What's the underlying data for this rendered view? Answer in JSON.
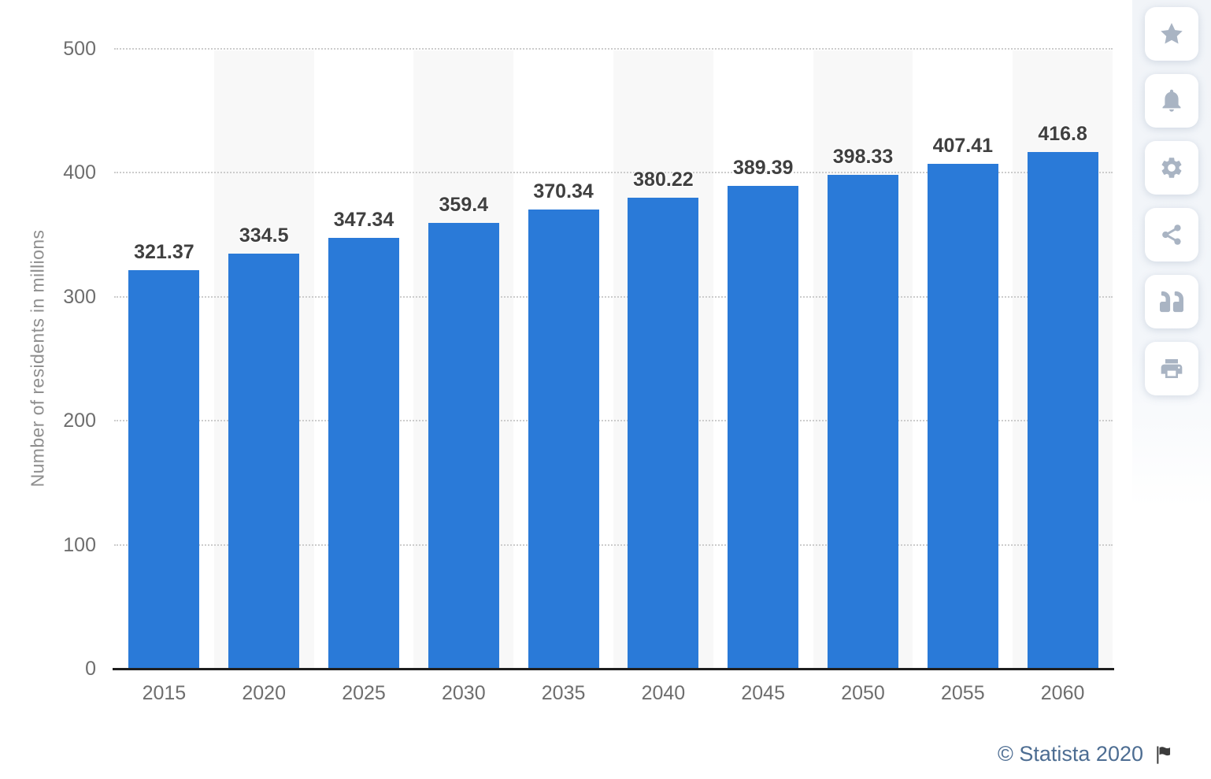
{
  "chart_data": {
    "type": "bar",
    "title": "",
    "categories": [
      "2015",
      "2020",
      "2025",
      "2030",
      "2035",
      "2040",
      "2045",
      "2050",
      "2055",
      "2060"
    ],
    "values": [
      321.37,
      334.5,
      347.34,
      359.4,
      370.34,
      380.22,
      389.39,
      398.33,
      407.41,
      416.8
    ],
    "bar_labels": [
      "321.37",
      "334.5",
      "347.34",
      "359.4",
      "370.34",
      "380.22",
      "389.39",
      "398.33",
      "407.41",
      "416.8"
    ],
    "xlabel": "",
    "ylabel": "Number of residents in millions",
    "ylim": [
      0,
      500
    ],
    "yticks": [
      0,
      100,
      200,
      300,
      400,
      500
    ],
    "grid": "horizontal-dotted",
    "legend": "none",
    "plot_bands": "alternating vertical stripes on even columns",
    "colors": {
      "bar": "#2a7ad8",
      "stripe": "#f8f8f8",
      "gridline": "#cccccc",
      "axis_line": "#1f1f1f",
      "tick_label": "#6e6e6e",
      "value_label": "#404040",
      "axis_title": "#8f8f8f"
    }
  },
  "toolbar": {
    "buttons": [
      {
        "icon": "star-icon",
        "action": "favorite"
      },
      {
        "icon": "bell-icon",
        "action": "notifications"
      },
      {
        "icon": "gear-icon",
        "action": "settings"
      },
      {
        "icon": "share-icon",
        "action": "share"
      },
      {
        "icon": "quote-icon",
        "action": "cite"
      },
      {
        "icon": "printer-icon",
        "action": "print"
      }
    ]
  },
  "footer": {
    "copyright": "© Statista 2020"
  },
  "ui_colors": {
    "icon": "#a9b4c3",
    "footer_text": "#4d6d92",
    "flag": "#3c3c3c"
  }
}
